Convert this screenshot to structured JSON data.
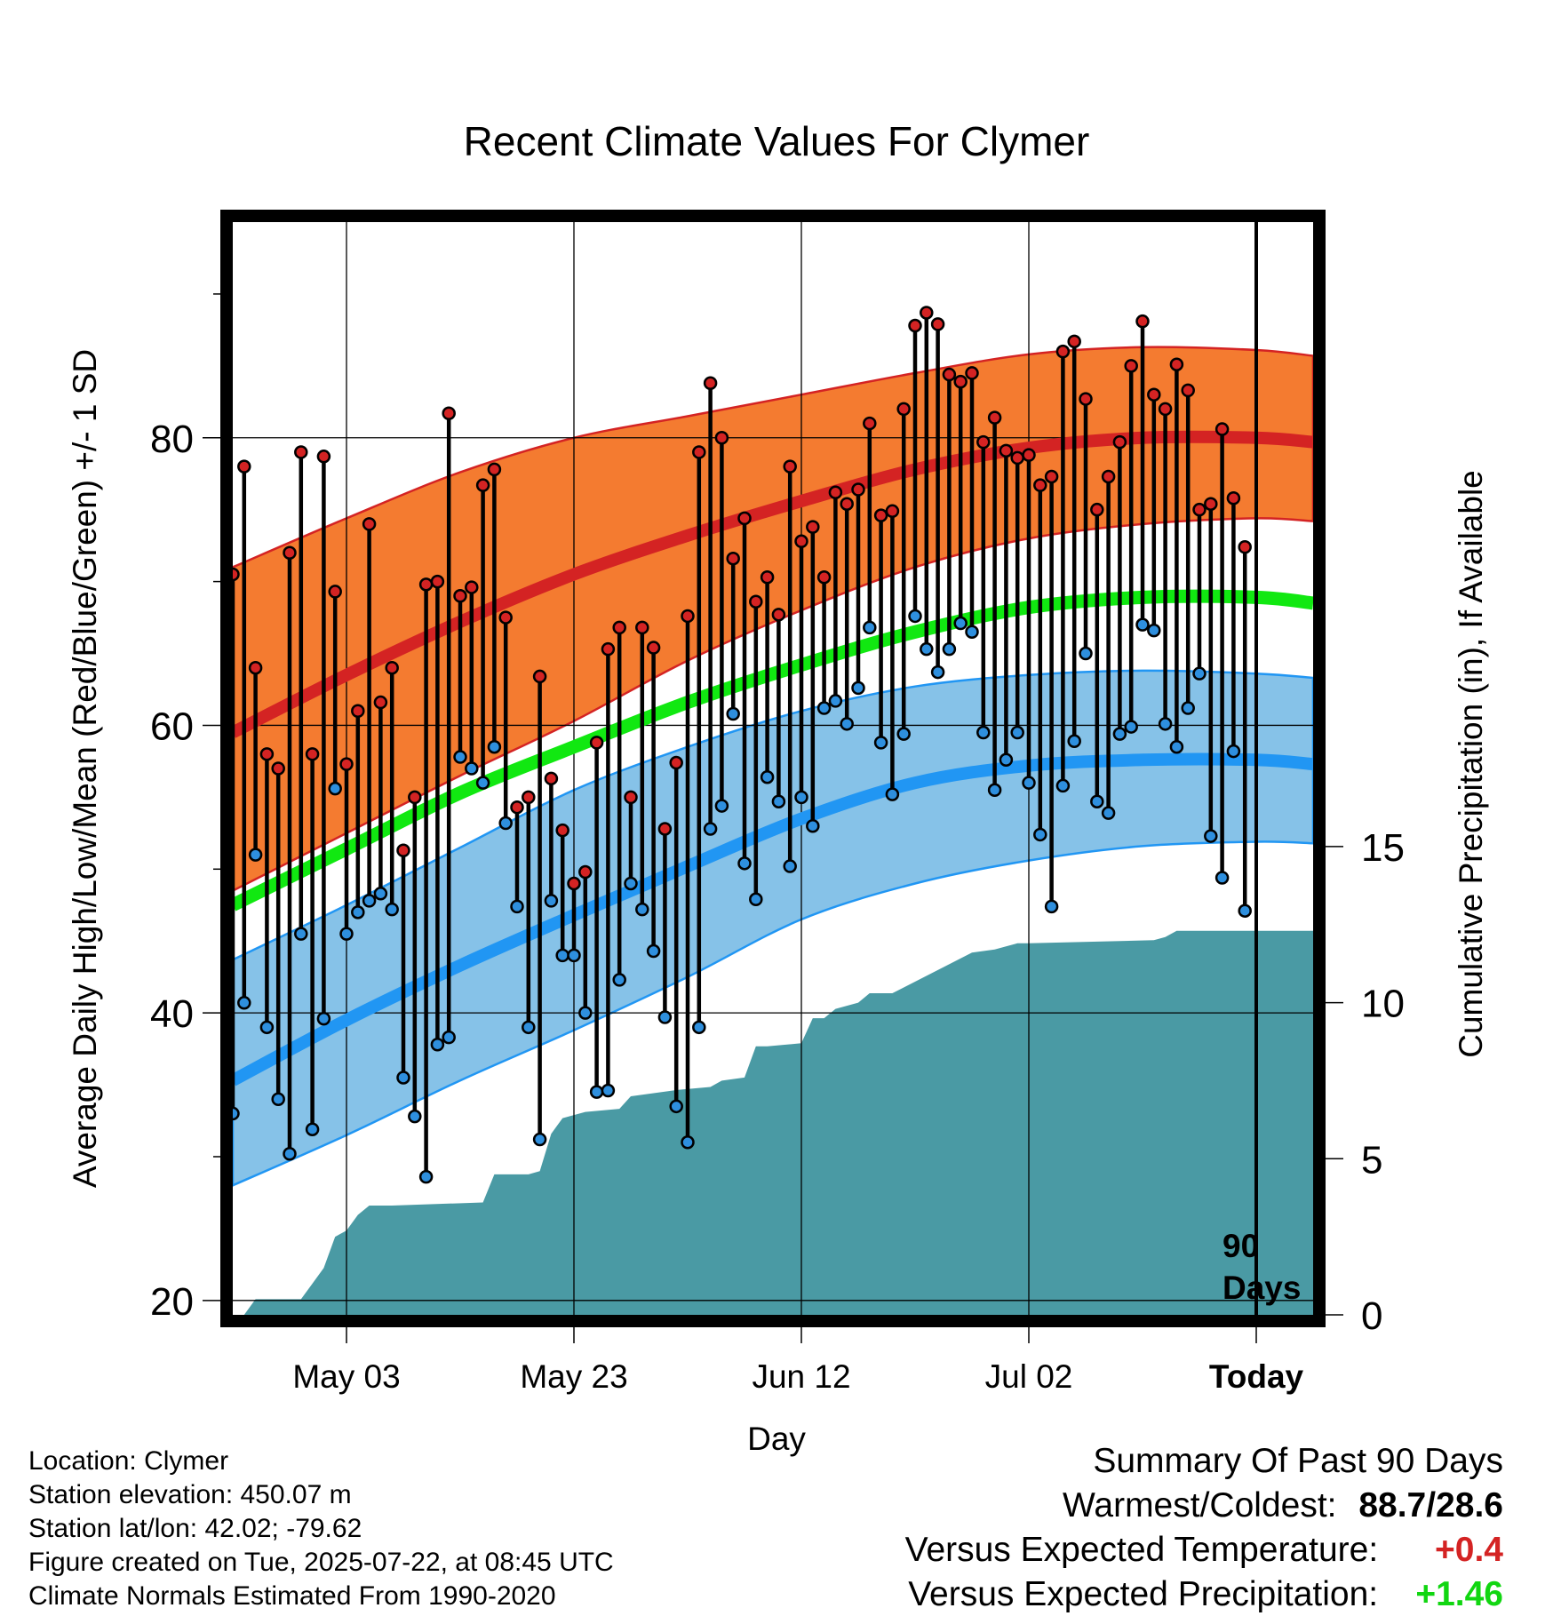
{
  "chart_data": {
    "type": "line",
    "title": "Recent Climate Values For Clymer",
    "xlabel": "Day",
    "ylabel": "Average Daily High/Low/Mean (Red/Blue/Green) +/- 1 SD",
    "y2label": "Cumulative Precipitation (in), If Available",
    "x_start": "2025-04-23",
    "x_end": "2025-07-27",
    "today": "2025-07-22",
    "xticks": [
      {
        "date": "2025-05-03",
        "label": "May 03"
      },
      {
        "date": "2025-05-23",
        "label": "May 23"
      },
      {
        "date": "2025-06-12",
        "label": "Jun 12"
      },
      {
        "date": "2025-07-02",
        "label": "Jul 02"
      },
      {
        "date": "2025-07-22",
        "label": "Today"
      }
    ],
    "ylim": [
      19,
      95
    ],
    "yticks": [
      20,
      40,
      60,
      80
    ],
    "y2lim": [
      0,
      35
    ],
    "y2ticks": [
      0,
      5,
      10,
      15
    ],
    "grid": true,
    "period_label": [
      "90",
      "Days"
    ],
    "colors": {
      "high_band": "#f47b30",
      "high_mean": "#d42323",
      "low_band": "#86c2e8",
      "low_mean": "#2196f3",
      "mean_line": "#11e811",
      "precip_fill": "#4a9aa4",
      "high_dot": "#d42323",
      "low_dot": "#2e8fde"
    },
    "normals": {
      "dates": [
        "2025-04-23",
        "2025-05-03",
        "2025-05-13",
        "2025-05-23",
        "2025-06-02",
        "2025-06-12",
        "2025-06-22",
        "2025-07-02",
        "2025-07-12",
        "2025-07-22",
        "2025-07-27"
      ],
      "high_upper": [
        71.0,
        74.4,
        77.6,
        80.0,
        81.5,
        83.0,
        84.5,
        85.8,
        86.3,
        86.1,
        85.7
      ],
      "high_mean": [
        59.5,
        63.5,
        67.2,
        70.5,
        73.2,
        75.6,
        77.8,
        79.3,
        80.0,
        80.0,
        79.7
      ],
      "high_lower": [
        48.5,
        52.5,
        56.5,
        60.3,
        64.5,
        68.0,
        71.0,
        73.0,
        74.0,
        74.4,
        74.2
      ],
      "mean": [
        47.5,
        51.4,
        55.3,
        58.5,
        61.6,
        64.2,
        66.5,
        68.2,
        68.9,
        68.9,
        68.5
      ],
      "low_upper": [
        43.7,
        47.5,
        51.5,
        55.5,
        58.5,
        61.0,
        62.7,
        63.5,
        63.8,
        63.6,
        63.3
      ],
      "low_mean": [
        35.3,
        39.5,
        43.3,
        46.8,
        50.2,
        53.5,
        56.0,
        57.2,
        57.6,
        57.6,
        57.3
      ],
      "low_lower": [
        28.0,
        31.5,
        35.3,
        38.8,
        42.5,
        46.5,
        49.0,
        50.6,
        51.6,
        51.9,
        51.8
      ]
    },
    "daily": {
      "start_date": "2025-04-23",
      "high": [
        70.5,
        78.0,
        64.0,
        58.0,
        57.0,
        72.0,
        79.0,
        58.0,
        78.7,
        69.3,
        57.3,
        61.0,
        74.0,
        61.6,
        64.0,
        51.3,
        55.0,
        69.8,
        70.0,
        81.7,
        69.0,
        69.6,
        76.7,
        77.8,
        67.5,
        54.3,
        55.0,
        63.4,
        56.3,
        52.7,
        49.0,
        49.8,
        58.8,
        65.3,
        66.8,
        55.0,
        66.8,
        65.4,
        52.8,
        57.4,
        67.6,
        79.0,
        83.8,
        80.0,
        71.6,
        74.4,
        68.6,
        70.3,
        67.7,
        78.0,
        72.8,
        73.8,
        70.3,
        76.2,
        75.4,
        76.4,
        81.0,
        74.6,
        74.9,
        82.0,
        87.8,
        88.7,
        87.9,
        84.4,
        83.9,
        84.5,
        79.7,
        81.4,
        79.1,
        78.6,
        78.8,
        76.7,
        77.3,
        86.0,
        86.7,
        82.7,
        75.0,
        77.3,
        79.7,
        85.0,
        88.1,
        83.0,
        82.0,
        85.1,
        83.3,
        75.0,
        75.4,
        80.6,
        75.8,
        72.4
      ],
      "low": [
        33.0,
        40.7,
        51.0,
        39.0,
        34.0,
        30.2,
        45.5,
        31.9,
        39.6,
        55.6,
        45.5,
        47.0,
        47.8,
        48.3,
        47.2,
        35.5,
        32.8,
        28.6,
        37.8,
        38.3,
        57.8,
        57.0,
        56.0,
        58.5,
        53.2,
        47.4,
        39.0,
        31.2,
        47.8,
        44.0,
        44.0,
        40.0,
        34.5,
        34.6,
        42.3,
        49.0,
        47.2,
        44.3,
        39.7,
        33.5,
        31.0,
        39.0,
        52.8,
        54.4,
        60.8,
        50.4,
        47.9,
        56.4,
        54.7,
        50.2,
        55.0,
        53.0,
        61.2,
        61.7,
        60.1,
        62.6,
        66.8,
        58.8,
        55.2,
        59.4,
        67.6,
        65.3,
        63.7,
        65.3,
        67.1,
        66.5,
        59.5,
        55.5,
        57.6,
        59.5,
        56.0,
        52.4,
        47.4,
        55.8,
        58.9,
        65.0,
        54.7,
        53.9,
        59.4,
        59.9,
        67.0,
        66.6,
        60.1,
        58.5,
        61.2,
        63.6,
        52.3,
        49.4,
        58.2,
        47.1
      ]
    },
    "precip_cumulative": {
      "dates": [
        "2025-04-23",
        "2025-04-24",
        "2025-04-25",
        "2025-04-26",
        "2025-04-29",
        "2025-04-30",
        "2025-05-01",
        "2025-05-02",
        "2025-05-03",
        "2025-05-04",
        "2025-05-05",
        "2025-05-06",
        "2025-05-07",
        "2025-05-15",
        "2025-05-16",
        "2025-05-19",
        "2025-05-20",
        "2025-05-21",
        "2025-05-22",
        "2025-05-23",
        "2025-05-24",
        "2025-05-27",
        "2025-05-28",
        "2025-05-30",
        "2025-06-01",
        "2025-06-04",
        "2025-06-05",
        "2025-06-07",
        "2025-06-08",
        "2025-06-09",
        "2025-06-12",
        "2025-06-13",
        "2025-06-14",
        "2025-06-15",
        "2025-06-17",
        "2025-06-18",
        "2025-06-19",
        "2025-06-20",
        "2025-06-27",
        "2025-06-29",
        "2025-06-30",
        "2025-07-01",
        "2025-07-02",
        "2025-07-13",
        "2025-07-14",
        "2025-07-15",
        "2025-07-27"
      ],
      "values": [
        0.0,
        0.0,
        0.5,
        0.5,
        0.5,
        1.0,
        1.5,
        2.5,
        2.7,
        3.2,
        3.5,
        3.5,
        3.5,
        3.6,
        4.5,
        4.5,
        4.6,
        5.8,
        6.3,
        6.4,
        6.5,
        6.6,
        7.0,
        7.1,
        7.2,
        7.3,
        7.5,
        7.6,
        8.6,
        8.6,
        8.7,
        9.5,
        9.5,
        9.8,
        10.0,
        10.3,
        10.3,
        10.3,
        11.6,
        11.7,
        11.8,
        11.9,
        11.9,
        12.0,
        12.1,
        12.3,
        12.3
      ]
    }
  },
  "info": {
    "location": "Location: Clymer",
    "elevation": "Station elevation: 450.07 m",
    "latlon": "Station lat/lon: 42.02; -79.62",
    "created": "Figure created on Tue, 2025-07-22, at 08:45 UTC",
    "normals": "Climate Normals Estimated From 1990-2020"
  },
  "summary": {
    "title": "Summary Of Past 90 Days",
    "warmest_label": "Warmest/Coldest:",
    "warmest_value": "88.7/28.6",
    "temp_label": "Versus Expected Temperature:",
    "temp_value": "+0.4",
    "temp_color": "#d42323",
    "precip_label": "Versus Expected Precipitation:",
    "precip_value": "+1.46",
    "precip_color": "#11d611"
  }
}
